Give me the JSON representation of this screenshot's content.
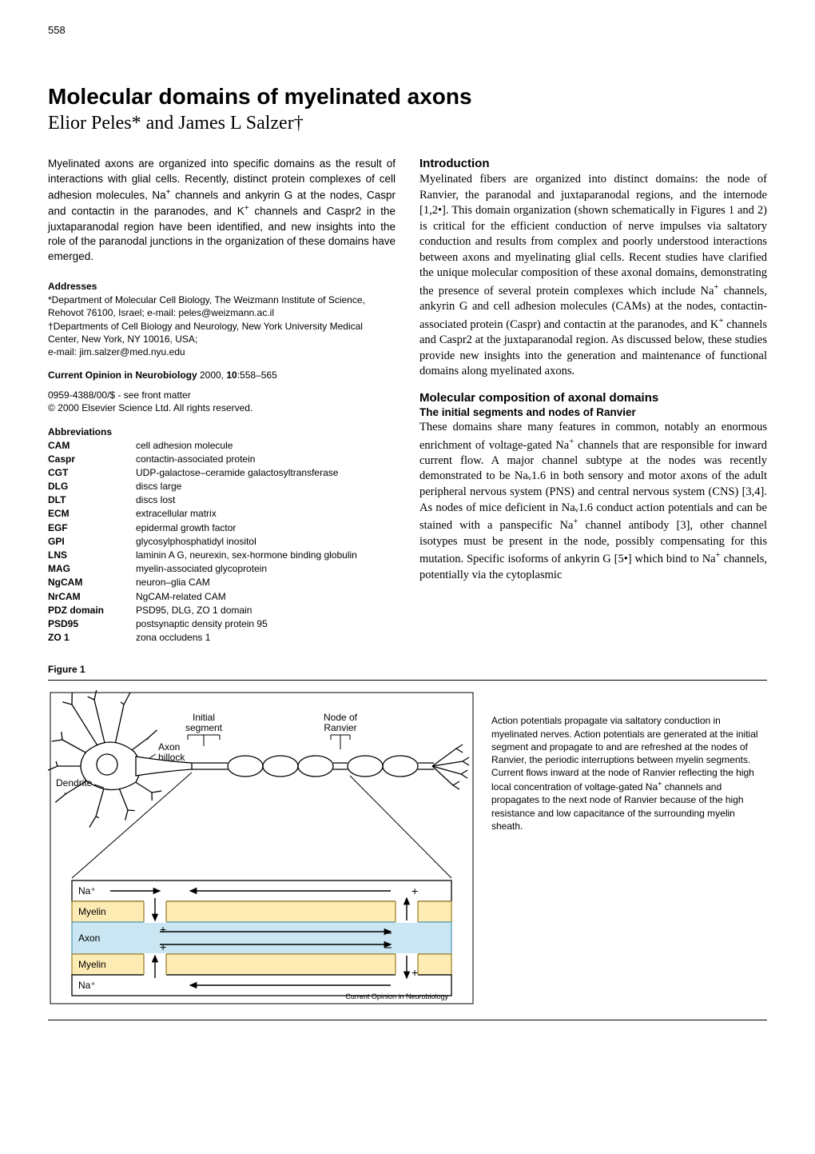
{
  "page_number": "558",
  "title": "Molecular domains of myelinated axons",
  "authors": "Elior Peles* and James L Salzer†",
  "abstract": "Myelinated axons are organized into specific domains as the result of interactions with glial cells. Recently, distinct protein complexes of cell adhesion molecules, Na+ channels and ankyrin G at the nodes, Caspr and contactin in the paranodes, and K+ channels and Caspr2 in the juxtaparanodal region have been identified, and new insights into the role of the paranodal junctions in the organization of these domains have emerged.",
  "addresses_heading": "Addresses",
  "addresses": "*Department of Molecular Cell Biology, The Weizmann Institute of Science, Rehovot 76100, Israel; e-mail: peles@weizmann.ac.il\n†Departments of Cell Biology and Neurology, New York University Medical Center, New York, NY 10016, USA;\ne-mail: jim.salzer@med.nyu.edu",
  "citation": "Current Opinion in Neurobiology 2000, 10:558–565",
  "front_matter": "0959-4388/00/$ - see front matter\n© 2000 Elsevier Science Ltd. All rights reserved.",
  "abbr_heading": "Abbreviations",
  "abbreviations": [
    {
      "k": "CAM",
      "v": "cell adhesion molecule"
    },
    {
      "k": "Caspr",
      "v": "contactin-associated protein"
    },
    {
      "k": "CGT",
      "v": "UDP-galactose–ceramide galactosyltransferase"
    },
    {
      "k": "DLG",
      "v": "discs large"
    },
    {
      "k": "DLT",
      "v": "discs lost"
    },
    {
      "k": "ECM",
      "v": "extracellular matrix"
    },
    {
      "k": "EGF",
      "v": "epidermal growth factor"
    },
    {
      "k": "GPI",
      "v": "glycosylphosphatidyl inositol"
    },
    {
      "k": "LNS",
      "v": "laminin A G, neurexin, sex-hormone binding globulin"
    },
    {
      "k": "MAG",
      "v": "myelin-associated glycoprotein"
    },
    {
      "k": "NgCAM",
      "v": "neuron–glia CAM"
    },
    {
      "k": "NrCAM",
      "v": "NgCAM-related CAM"
    },
    {
      "k": "PDZ domain",
      "v": "PSD95, DLG, ZO 1 domain"
    },
    {
      "k": "PSD95",
      "v": "postsynaptic density protein 95"
    },
    {
      "k": "ZO 1",
      "v": "zona occludens 1"
    }
  ],
  "intro_heading": "Introduction",
  "intro_body": "Myelinated fibers are organized into distinct domains: the node of Ranvier, the paranodal and juxtaparanodal regions, and the internode [1,2•]. This domain organization (shown schematically in Figures 1 and 2) is critical for the efficient conduction of nerve impulses via saltatory conduction and results from complex and poorly understood interactions between axons and myelinating glial cells. Recent studies have clarified the unique molecular composition of these axonal domains, demonstrating the presence of several protein complexes which include Na+ channels, ankyrin G and cell adhesion molecules (CAMs) at the nodes, contactin-associated protein (Caspr) and contactin at the paranodes, and K+ channels and Caspr2 at the juxtaparanodal region. As discussed below, these studies provide new insights into the generation and maintenance of functional domains along myelinated axons.",
  "sec2_heading": "Molecular composition of axonal domains",
  "sec2_sub": "The initial segments and nodes of Ranvier",
  "sec2_body": "These domains share many features in common, notably an enormous enrichment of voltage-gated Na+ channels that are responsible for inward current flow. A major channel subtype at the nodes was recently demonstrated to be Naᵥ1.6 in both sensory and motor axons of the adult peripheral nervous system (PNS) and central nervous system (CNS) [3,4]. As nodes of mice deficient in Naᵥ1.6 conduct action potentials and can be stained with a panspecific Na+ channel antibody [3], other channel isotypes must be present in the node, possibly compensating for this mutation. Specific isoforms of ankyrin G [5•] which bind to Na+ channels, potentially via the cytoplasmic",
  "figure_label": "Figure 1",
  "figure_caption": "Action potentials propagate via saltatory conduction in myelinated nerves. Action potentials are generated at the initial segment and propagate to and are refreshed at the nodes of Ranvier, the periodic interruptions between myelin segments. Current flows inward at the node of Ranvier reflecting the high local concentration of voltage-gated Na+ channels and propagates to the next node of Ranvier because of the high resistance and low capacitance of the surrounding myelin sheath.",
  "figure": {
    "credit": "Current Opinion in Neurobiology",
    "labels": {
      "dendrite": "Dendrite",
      "axon_hillock": "Axon\nhillock",
      "initial_segment": "Initial\nsegment",
      "node": "Node of\nRanvier",
      "na_top": "Na+",
      "na_bot": "Na+",
      "myelin_top": "Myelin",
      "myelin_bot": "Myelin",
      "axon": "Axon"
    },
    "colors": {
      "box_border": "#000000",
      "cell_fill": "#ffffff",
      "myelin_fill": "#fdebb4",
      "myelin_border": "#a0832f",
      "axon_fill": "#c9e6f2",
      "axon_border": "#5aa0ba",
      "arrow": "#000000",
      "background": "#ffffff"
    },
    "stroke_width": 1.3
  }
}
